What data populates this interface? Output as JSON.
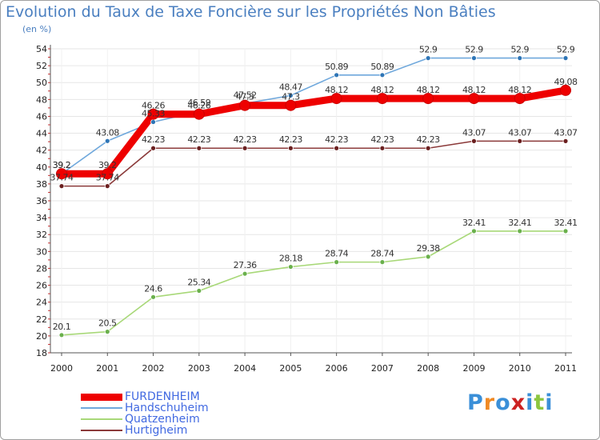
{
  "chart_data": {
    "type": "line",
    "title": "Evolution du Taux de Taxe Foncière sur les Propriétés Non Bâties",
    "ylabel": "(en %)",
    "xlabel": "",
    "ylim": [
      18,
      54
    ],
    "ytick_step": 2,
    "grid": "horizontal",
    "legend_position": "bottom-left",
    "categories": [
      "2000",
      "2001",
      "2002",
      "2003",
      "2004",
      "2005",
      "2006",
      "2007",
      "2008",
      "2009",
      "2010",
      "2011"
    ],
    "series": [
      {
        "name": "Handschuheim",
        "color": "#6fa8dc",
        "marker": "#2e75b6",
        "values": [
          39.2,
          43.08,
          45.33,
          46.59,
          47.52,
          48.47,
          50.89,
          50.89,
          52.9,
          52.9,
          52.9,
          52.9
        ],
        "labels": [
          "39.2",
          "43.08",
          "45.33",
          "46.59",
          "47.52",
          "48.47",
          "50.89",
          "50.89",
          "52.9",
          "52.9",
          "52.9",
          "52.9"
        ]
      },
      {
        "name": "Quatzenheim",
        "color": "#a8d878",
        "marker": "#6ab04c",
        "values": [
          20.1,
          20.5,
          24.6,
          25.34,
          27.36,
          28.18,
          28.74,
          28.74,
          29.38,
          32.41,
          32.41,
          32.41
        ],
        "labels": [
          "20.1",
          "20.5",
          "24.6",
          "25.34",
          "27.36",
          "28.18",
          "28.74",
          "28.74",
          "29.38",
          "32.41",
          "32.41",
          "32.41"
        ]
      },
      {
        "name": "Hurtigheim",
        "color": "#8b3a3a",
        "marker": "#6b2020",
        "values": [
          37.74,
          37.74,
          42.23,
          42.23,
          42.23,
          42.23,
          42.23,
          42.23,
          42.23,
          43.07,
          43.07,
          43.07
        ],
        "labels": [
          "37.74",
          "37.74",
          "42.23",
          "42.23",
          "42.23",
          "42.23",
          "42.23",
          "42.23",
          "42.23",
          "43.07",
          "43.07",
          "43.07"
        ]
      },
      {
        "name": "FURDENHEIM",
        "color": "#ee0000",
        "marker": "#ee0000",
        "values": [
          39.2,
          39.2,
          46.26,
          46.26,
          47.3,
          47.3,
          48.12,
          48.12,
          48.12,
          48.12,
          48.12,
          49.08
        ],
        "labels": [
          "39.2",
          "39.2",
          "46.26",
          "46.26",
          "47.3",
          "47.3",
          "48.12",
          "48.12",
          "48.12",
          "48.12",
          "48.12",
          "49.08"
        ]
      }
    ]
  },
  "legend": {
    "items": [
      {
        "label": "FURDENHEIM",
        "color": "#ee0000"
      },
      {
        "label": "Handschuheim",
        "color": "#6fa8dc"
      },
      {
        "label": "Quatzenheim",
        "color": "#a8d878"
      },
      {
        "label": "Hurtigheim",
        "color": "#8b3a3a"
      }
    ]
  },
  "logo": {
    "letters": [
      "P",
      "r",
      "o",
      "x",
      "i",
      "t",
      "i"
    ],
    "colors": [
      "#3a8fd8",
      "#f08a24",
      "#3a8fd8",
      "#cc2222",
      "#3a8fd8",
      "#8cc63f",
      "#3a8fd8"
    ]
  }
}
